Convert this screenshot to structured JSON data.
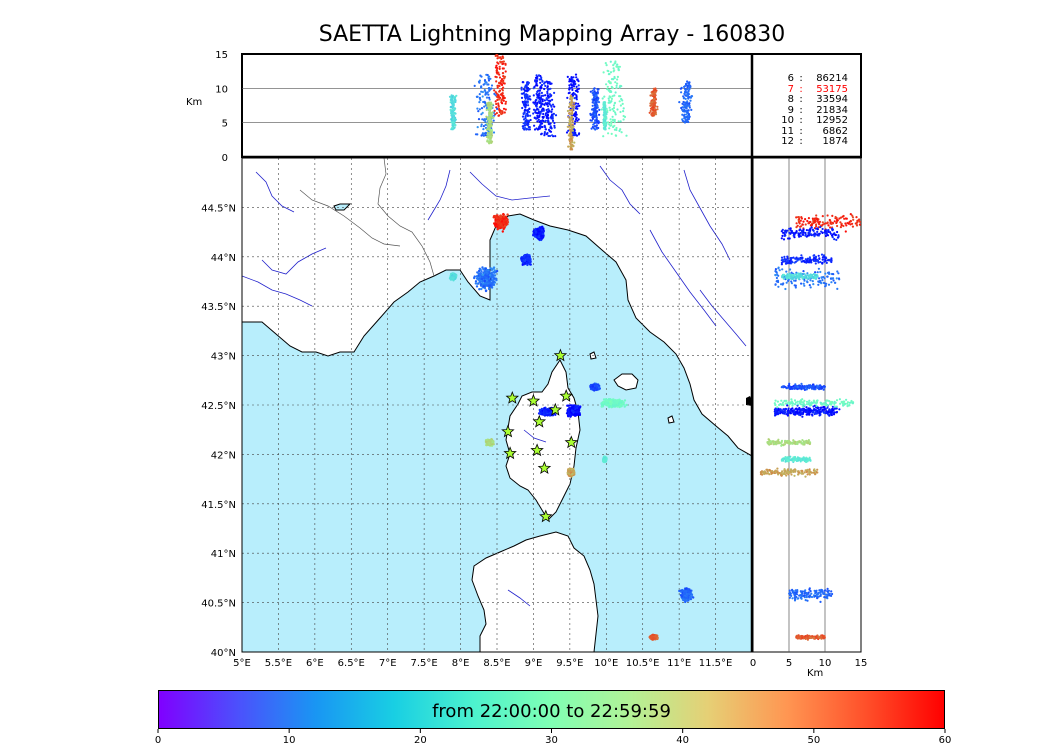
{
  "title": "SAETTA Lightning Mapping Array - 160830",
  "legend": [
    {
      "label": "6",
      "count": "86214",
      "highlight": false
    },
    {
      "label": "7",
      "count": "53175",
      "highlight": true
    },
    {
      "label": "8",
      "count": "33594",
      "highlight": false
    },
    {
      "label": "9",
      "count": "21834",
      "highlight": false
    },
    {
      "label": "10",
      "count": "12952",
      "highlight": false
    },
    {
      "label": "11",
      "count": "6862",
      "highlight": false
    },
    {
      "label": "12",
      "count": "1874",
      "highlight": false
    }
  ],
  "map": {
    "lon_ticks": [
      "5°E",
      "5.5°E",
      "6°E",
      "6.5°E",
      "7°E",
      "7.5°E",
      "8°E",
      "8.5°E",
      "9°E",
      "9.5°E",
      "10°E",
      "10.5°E",
      "11°E",
      "11.5°E"
    ],
    "lat_ticks": [
      "40°N",
      "40.5°N",
      "41°N",
      "41.5°N",
      "42°N",
      "42.5°N",
      "43°N",
      "43.5°N",
      "44°N",
      "44.5°N"
    ],
    "lon_range": [
      5,
      12
    ],
    "lat_range": [
      40,
      45
    ],
    "sea_color": "#b8eefc",
    "land_color": "#ffffff",
    "river_color": "#0000cc"
  },
  "alt_top": {
    "ylabel": "Km",
    "y_ticks": [
      "0",
      "5",
      "10",
      "15"
    ],
    "y_range": [
      0,
      15
    ]
  },
  "alt_right": {
    "xlabel": "Km",
    "x_ticks": [
      "0",
      "5",
      "10",
      "15"
    ],
    "x_range": [
      0,
      15
    ]
  },
  "stations": [
    {
      "lon": 9.37,
      "lat": 43.0
    },
    {
      "lon": 8.71,
      "lat": 42.57
    },
    {
      "lon": 9.0,
      "lat": 42.54
    },
    {
      "lon": 9.45,
      "lat": 42.59
    },
    {
      "lon": 9.3,
      "lat": 42.45
    },
    {
      "lon": 9.08,
      "lat": 42.33
    },
    {
      "lon": 8.65,
      "lat": 42.23
    },
    {
      "lon": 9.52,
      "lat": 42.12
    },
    {
      "lon": 9.05,
      "lat": 42.04
    },
    {
      "lon": 8.68,
      "lat": 42.01
    },
    {
      "lon": 9.15,
      "lat": 41.86
    },
    {
      "lon": 9.17,
      "lat": 41.37
    }
  ],
  "clusters": [
    {
      "lon": 8.55,
      "lat": 44.35,
      "dlon": 0.12,
      "dlat": 0.1,
      "alt": [
        6,
        15
      ],
      "time": 57
    },
    {
      "lon": 9.07,
      "lat": 44.24,
      "dlon": 0.1,
      "dlat": 0.08,
      "alt": [
        4,
        12
      ],
      "time": 2
    },
    {
      "lon": 8.9,
      "lat": 43.97,
      "dlon": 0.08,
      "dlat": 0.06,
      "alt": [
        4,
        11
      ],
      "time": 3
    },
    {
      "lon": 8.35,
      "lat": 43.78,
      "dlon": 0.18,
      "dlat": 0.15,
      "alt": [
        3,
        12
      ],
      "time": 9
    },
    {
      "lon": 7.9,
      "lat": 43.8,
      "dlon": 0.05,
      "dlat": 0.04,
      "alt": [
        4,
        9
      ],
      "time": 20
    },
    {
      "lon": 9.2,
      "lat": 42.43,
      "dlon": 0.14,
      "dlat": 0.05,
      "alt": [
        3,
        11
      ],
      "time": 2
    },
    {
      "lon": 9.55,
      "lat": 42.44,
      "dlon": 0.12,
      "dlat": 0.07,
      "alt": [
        3,
        12
      ],
      "time": 1
    },
    {
      "lon": 9.85,
      "lat": 42.68,
      "dlon": 0.08,
      "dlat": 0.04,
      "alt": [
        4,
        10
      ],
      "time": 6
    },
    {
      "lon": 10.1,
      "lat": 42.52,
      "dlon": 0.2,
      "dlat": 0.05,
      "alt": [
        3,
        14
      ],
      "time": 26
    },
    {
      "lon": 8.4,
      "lat": 42.12,
      "dlon": 0.06,
      "dlat": 0.04,
      "alt": [
        2,
        8
      ],
      "time": 40
    },
    {
      "lon": 9.52,
      "lat": 41.82,
      "dlon": 0.06,
      "dlat": 0.05,
      "alt": [
        1,
        9
      ],
      "time": 47
    },
    {
      "lon": 9.98,
      "lat": 41.95,
      "dlon": 0.03,
      "dlat": 0.03,
      "alt": [
        4,
        8
      ],
      "time": 22
    },
    {
      "lon": 11.1,
      "lat": 40.58,
      "dlon": 0.1,
      "dlat": 0.08,
      "alt": [
        5,
        11
      ],
      "time": 8
    },
    {
      "lon": 10.65,
      "lat": 40.15,
      "dlon": 0.06,
      "dlat": 0.03,
      "alt": [
        6,
        10
      ],
      "time": 53
    }
  ],
  "colorbar": {
    "label": "from 22:00:00 to 22:59:59",
    "ticks": [
      "0",
      "10",
      "20",
      "30",
      "40",
      "50",
      "60"
    ],
    "range": [
      0,
      60
    ]
  }
}
